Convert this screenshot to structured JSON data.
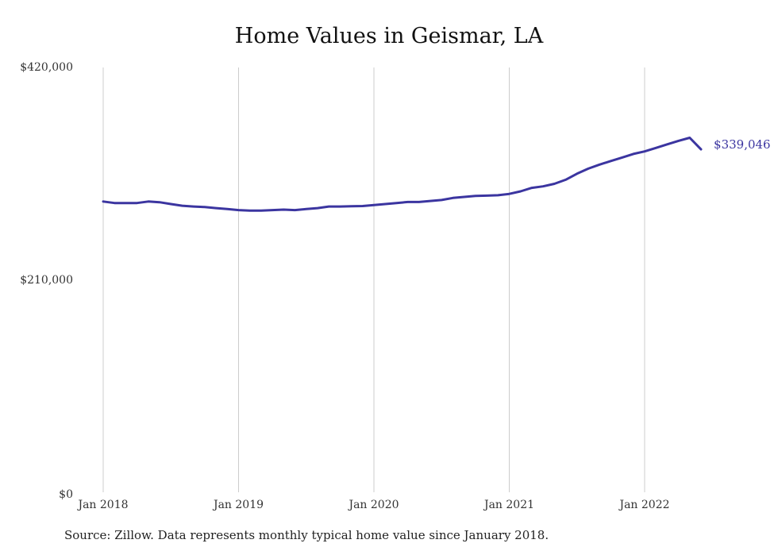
{
  "title": "Home Values in Geismar, LA",
  "source": "Source: Zillow. Data represents monthly typical home value since January 2018.",
  "colors": {
    "line": "#3b35a0",
    "grid": "#cccccc"
  },
  "chart_data": {
    "type": "line",
    "title": "Home Values in Geismar, LA",
    "xlabel": "",
    "ylabel": "",
    "ylim": [
      0,
      420000
    ],
    "yticks": [
      0,
      210000,
      420000
    ],
    "ytick_labels": [
      "$0",
      "$210,000",
      "$420,000"
    ],
    "xticks": [
      "2018-01",
      "2019-01",
      "2020-01",
      "2021-01",
      "2022-01"
    ],
    "xtick_labels": [
      "Jan 2018",
      "Jan 2019",
      "Jan 2020",
      "Jan 2021",
      "Jan 2022"
    ],
    "grid": {
      "vertical": true,
      "horizontal": false
    },
    "end_label": "$339,046",
    "series": [
      {
        "x": [
          "2018-01",
          "2018-02",
          "2018-03",
          "2018-04",
          "2018-05",
          "2018-06",
          "2018-07",
          "2018-08",
          "2018-09",
          "2018-10",
          "2018-11",
          "2018-12",
          "2019-01",
          "2019-02",
          "2019-03",
          "2019-04",
          "2019-05",
          "2019-06",
          "2019-07",
          "2019-08",
          "2019-09",
          "2019-10",
          "2019-11",
          "2019-12",
          "2020-01",
          "2020-02",
          "2020-03",
          "2020-04",
          "2020-05",
          "2020-06",
          "2020-07",
          "2020-08",
          "2020-09",
          "2020-10",
          "2020-11",
          "2020-12",
          "2021-01",
          "2021-02",
          "2021-03",
          "2021-04",
          "2021-05",
          "2021-06",
          "2021-07",
          "2021-08",
          "2021-09",
          "2021-10",
          "2021-11",
          "2021-12",
          "2022-01",
          "2022-02",
          "2022-03",
          "2022-04",
          "2022-05",
          "2022-06"
        ],
        "values": [
          287500,
          286000,
          286000,
          286000,
          287500,
          286800,
          285000,
          283300,
          282500,
          282000,
          281000,
          280000,
          279000,
          278500,
          278500,
          279000,
          279500,
          279000,
          280000,
          281000,
          282500,
          282500,
          282800,
          283000,
          284000,
          285000,
          286000,
          287000,
          287000,
          288000,
          289000,
          291000,
          292000,
          293000,
          293300,
          293700,
          295000,
          297500,
          301000,
          302500,
          305000,
          309000,
          315000,
          320000,
          324000,
          327500,
          331000,
          334500,
          337000,
          340500,
          344000,
          347500,
          350500,
          339046
        ]
      }
    ]
  }
}
